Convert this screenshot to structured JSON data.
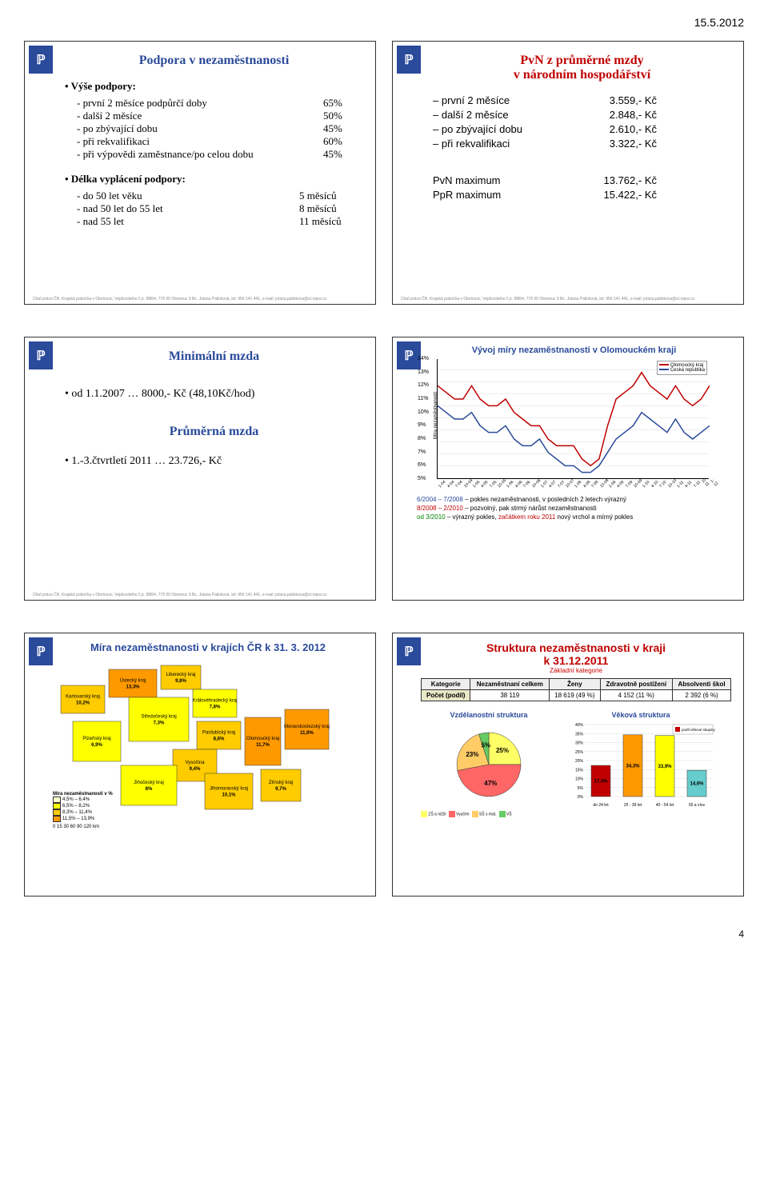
{
  "page_date": "15.5.2012",
  "page_number": "4",
  "footer": "Úřad práce ČR, Krajská pobočka v Olomouci, Vejdovského č.p. 988/4, 779 00 Olomouc 9\nBc. Jolana Palinková, tel: 950 141 441, e-mail: jolana.palinkova@ol.mpsv.cz",
  "slide1": {
    "title": "Podpora v nezaměstnanosti",
    "bullet1": "Výše podpory:",
    "rows1": [
      {
        "lbl": "- první 2 měsíce podpůrčí doby",
        "val": "65%"
      },
      {
        "lbl": "- další 2 měsíce",
        "val": "50%"
      },
      {
        "lbl": "- po zbývající dobu",
        "val": "45%"
      },
      {
        "lbl": "- při rekvalifikaci",
        "val": "60%"
      },
      {
        "lbl": "- při výpovědi zaměstnance/po celou dobu",
        "val": "45%"
      }
    ],
    "bullet2": "Délka vyplácení podpory:",
    "rows2": [
      {
        "lbl": "- do 50 let věku",
        "val": "5 měsíců"
      },
      {
        "lbl": "- nad 50 let do 55 let",
        "val": "8 měsíců"
      },
      {
        "lbl": "- nad 55 let",
        "val": "11 měsíců"
      }
    ]
  },
  "slide2": {
    "title_l1": "PvN z průměrné mzdy",
    "title_l2": "v národním hospodářství",
    "rows": [
      {
        "lbl": "– první 2 měsíce",
        "val": "3.559,- Kč"
      },
      {
        "lbl": "– další 2 měsíce",
        "val": "2.848,- Kč"
      },
      {
        "lbl": "– po zbývající dobu",
        "val": "2.610,- Kč"
      },
      {
        "lbl": "– při rekvalifikaci",
        "val": "3.322,- Kč"
      }
    ],
    "max_rows": [
      {
        "lbl": "PvN maximum",
        "val": "13.762,- Kč"
      },
      {
        "lbl": "PpR maximum",
        "val": "15.422,- Kč"
      }
    ]
  },
  "slide3": {
    "title1": "Minimální mzda",
    "line1": "• od 1.1.2007 … 8000,- Kč (48,10Kč/hod)",
    "title2": "Průměrná mzda",
    "line2": "• 1.-3.čtvrtletí 2011 … 23.726,- Kč"
  },
  "slide4": {
    "title": "Vývoj míry nezaměstnanosti v Olomouckém kraji",
    "ylabel": "Míra nezaměstnanosti",
    "yticks": [
      "5%",
      "6%",
      "7%",
      "8%",
      "9%",
      "10%",
      "11%",
      "12%",
      "13%",
      "14%"
    ],
    "xticks": [
      "1-04",
      "4-04",
      "7-04",
      "10-04",
      "1-05",
      "4-05",
      "7-05",
      "10-05",
      "1-06",
      "4-06",
      "7-06",
      "10-06",
      "1-07",
      "4-07",
      "7-07",
      "10-07",
      "1-08",
      "4-08",
      "7-08",
      "10-08",
      "1-09",
      "4-09",
      "7-09",
      "10-09",
      "1-10",
      "4-10",
      "7-10",
      "10-10",
      "1-11",
      "4-11",
      "7-11",
      "10-11",
      "1-12"
    ],
    "legend": [
      "Olomoucký kraj",
      "Česká republika"
    ],
    "series_colors": [
      "#c00000",
      "#2a4a9a"
    ],
    "series_ol": [
      12,
      11.5,
      11,
      11,
      12,
      11,
      10.5,
      10.5,
      11,
      10,
      9.5,
      9,
      9,
      8,
      7.5,
      7.5,
      7.5,
      6.5,
      6,
      6.5,
      9,
      11,
      11.5,
      12,
      13,
      12,
      11.5,
      11,
      12,
      11,
      10.5,
      11,
      12
    ],
    "series_cr": [
      10.5,
      10,
      9.5,
      9.5,
      10,
      9,
      8.5,
      8.5,
      9,
      8,
      7.5,
      7.5,
      8,
      7,
      6.5,
      6,
      6,
      5.5,
      5.5,
      6,
      7,
      8,
      8.5,
      9,
      10,
      9.5,
      9,
      8.5,
      9.5,
      8.5,
      8,
      8.5,
      9
    ],
    "ylim": [
      5,
      14
    ],
    "note1_a": "6/2004 – 7/2008",
    "note1_b": " – pokles nezaměstnanosti, v posledních 2 letech výrazný",
    "note2_a": "8/2008 – 2/2010",
    "note2_b": " – pozvolný, pak strmý nárůst nezaměstnanosti",
    "note3_a": "od 3/2010",
    "note3_b": " – výrazný pokles, ",
    "note3_c": "začátkem roku 2011",
    "note3_d": " nový vrchol a mírný pokles"
  },
  "slide5": {
    "title": "Míra nezaměstnanosti v krajích ČR k 31. 3. 2012",
    "legend_title": "Míra nezaměstnanosti v %",
    "legend": [
      {
        "lbl": "4,5% – 6,4%",
        "color": "#ffffcc"
      },
      {
        "lbl": "6,5% – 8,2%",
        "color": "#ffff00"
      },
      {
        "lbl": "8,3% – 11,4%",
        "color": "#ffcc00"
      },
      {
        "lbl": "11,5% – 13,9%",
        "color": "#ff9900"
      }
    ],
    "scale": "0  15  30      60       90       120 km",
    "regions": [
      {
        "name": "Ústecký kraj",
        "pct": "13,3%",
        "color": "#ff9900"
      },
      {
        "name": "Liberecký kraj",
        "pct": "9,8%",
        "color": "#ffcc00"
      },
      {
        "name": "Karlovarský kraj",
        "pct": "10,2%",
        "color": "#ffcc00"
      },
      {
        "name": "Hlavní město Praha",
        "pct": "4%",
        "color": "#ffffcc"
      },
      {
        "name": "Středočeský kraj",
        "pct": "7,3%",
        "color": "#ffff00"
      },
      {
        "name": "Královéhradecký kraj",
        "pct": "7,8%",
        "color": "#ffff00"
      },
      {
        "name": "Pardubický kraj",
        "pct": "8,6%",
        "color": "#ffcc00"
      },
      {
        "name": "Plzeňský kraj",
        "pct": "6,9%",
        "color": "#ffff00"
      },
      {
        "name": "Vysočina",
        "pct": "9,4%",
        "color": "#ffcc00"
      },
      {
        "name": "Jihočeský kraj",
        "pct": "8%",
        "color": "#ffff00"
      },
      {
        "name": "Jihomoravský kraj",
        "pct": "10,1%",
        "color": "#ffcc00"
      },
      {
        "name": "Olomoucký kraj",
        "pct": "11,7%",
        "color": "#ff9900"
      },
      {
        "name": "Moravskoslezský kraj",
        "pct": "11,9%",
        "color": "#ff9900"
      },
      {
        "name": "Zlínský kraj",
        "pct": "9,7%",
        "color": "#ffcc00"
      }
    ]
  },
  "slide6": {
    "title_l1": "Struktura nezaměstnanosti v kraji",
    "title_l2": "k 31.12.2011",
    "subtitle": "Základní kategorie",
    "table": {
      "headers": [
        "Kategorie",
        "Nezaměstnaní celkem",
        "Ženy",
        "Zdravotně postižení",
        "Absolventi škol"
      ],
      "row_header": "Počet (podíl)",
      "cells": [
        "38 119",
        "18 619 (49 %)",
        "4 152 (11 %)",
        "2 392 (6 %)"
      ]
    },
    "pie_title": "Vzdělanostní struktura",
    "pie": {
      "slices": [
        {
          "lbl": "ZŠ a nižší",
          "pct": 25,
          "val": "25%",
          "color": "#ffff66"
        },
        {
          "lbl": "Vyučen",
          "pct": 47,
          "val": "47%",
          "color": "#ff6666"
        },
        {
          "lbl": "SŠ s mat.",
          "pct": 23,
          "val": "23%",
          "color": "#ffcc66"
        },
        {
          "lbl": "VŠ",
          "pct": 5,
          "val": "5%",
          "color": "#66cc66"
        }
      ]
    },
    "bar_title": "Věková struktura",
    "bar": {
      "cats": [
        "do 24 let",
        "25 - 39 let",
        "40 - 54 let",
        "55 a více"
      ],
      "vals": [
        17.3,
        34.3,
        33.9,
        14.6
      ],
      "labels": [
        "17,3%",
        "34,3%",
        "33,9%",
        "14,6%"
      ],
      "colors": [
        "#c00000",
        "#ff9900",
        "#ffff00",
        "#66cccc"
      ],
      "ylim": [
        0,
        40
      ],
      "ytick_step": 5,
      "legend": "podíl věkové skupiny"
    }
  }
}
